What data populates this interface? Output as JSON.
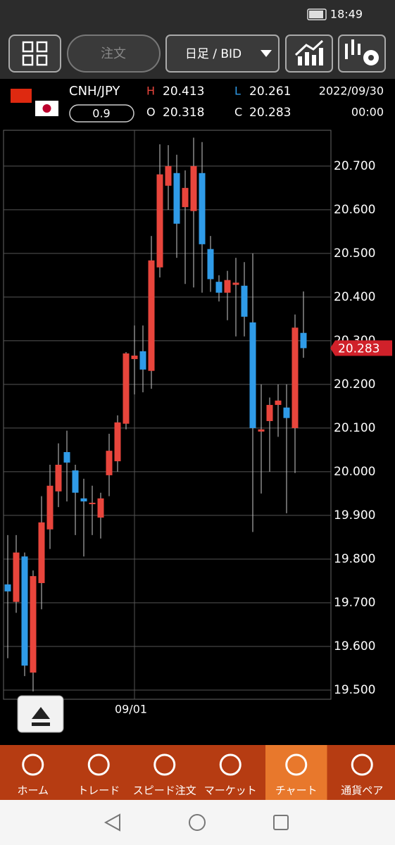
{
  "status_bar": {
    "time": "18:49"
  },
  "toolbar": {
    "order": "注文",
    "period": "日足 / BID"
  },
  "quote": {
    "pair": "CNH/JPY",
    "spread": 0.9,
    "high_label": "H",
    "high": 20.413,
    "low_label": "L",
    "low": 20.261,
    "open_label": "O",
    "open": 20.318,
    "close_label": "C",
    "close": 20.283,
    "date": "2022/09/30",
    "time": "00:00"
  },
  "chart_data": {
    "type": "candlestick",
    "categories": [
      null,
      null,
      null,
      null,
      null,
      null,
      null,
      null,
      null,
      null,
      null,
      null,
      null,
      null,
      null,
      "09/01",
      null,
      null,
      null,
      null,
      null,
      null,
      null,
      null,
      null,
      null,
      null,
      null,
      null,
      null,
      null,
      null,
      null,
      null,
      null,
      null
    ],
    "open": [
      19.742,
      19.702,
      19.806,
      19.54,
      19.745,
      19.868,
      19.955,
      20.045,
      20.003,
      19.939,
      19.926,
      19.895,
      19.992,
      20.024,
      20.11,
      20.258,
      20.276,
      20.231,
      20.468,
      20.655,
      20.684,
      20.606,
      20.597,
      20.684,
      20.51,
      20.435,
      20.41,
      20.428,
      20.426,
      20.342,
      20.092,
      20.116,
      20.153,
      20.147,
      20.1,
      20.318
    ],
    "high": [
      19.855,
      19.855,
      19.815,
      19.774,
      19.944,
      20.016,
      20.065,
      20.094,
      20.016,
      19.984,
      19.968,
      19.952,
      20.087,
      20.129,
      20.274,
      20.335,
      20.335,
      20.54,
      20.75,
      20.748,
      20.726,
      20.69,
      20.765,
      20.755,
      20.54,
      20.45,
      20.46,
      20.49,
      20.48,
      20.5,
      20.2,
      20.17,
      20.2,
      20.2,
      20.36,
      20.413
    ],
    "low": [
      19.573,
      19.677,
      19.532,
      19.497,
      19.685,
      19.823,
      19.919,
      19.932,
      19.855,
      19.806,
      19.855,
      19.847,
      19.944,
      20.0,
      20.097,
      20.177,
      20.182,
      20.19,
      20.445,
      20.6,
      20.49,
      20.43,
      20.422,
      20.41,
      20.412,
      20.39,
      20.347,
      20.31,
      20.31,
      19.862,
      19.95,
      20.0,
      20.08,
      19.905,
      19.997,
      20.261
    ],
    "close": [
      19.726,
      19.815,
      19.556,
      19.761,
      19.884,
      19.968,
      20.016,
      20.021,
      19.952,
      19.932,
      19.929,
      19.939,
      20.048,
      20.113,
      20.271,
      20.266,
      20.234,
      20.484,
      20.681,
      20.7,
      20.568,
      20.65,
      20.7,
      20.521,
      20.441,
      20.41,
      20.439,
      20.433,
      20.355,
      20.1,
      20.097,
      20.153,
      20.163,
      20.123,
      20.33,
      20.283
    ],
    "up_color": "#e8453c",
    "down_color": "#2f9be8",
    "last_price": 20.283,
    "ylim": [
      19.479,
      20.782
    ],
    "yticks": [
      {
        "value": 19.5,
        "label": "19.500"
      },
      {
        "value": 19.6,
        "label": "19.600"
      },
      {
        "value": 19.7,
        "label": "19.700"
      },
      {
        "value": 19.8,
        "label": "19.800"
      },
      {
        "value": 19.9,
        "label": "19.900"
      },
      {
        "value": 20.0,
        "label": "20.000"
      },
      {
        "value": 20.1,
        "label": "20.100"
      },
      {
        "value": 20.2,
        "label": "20.200"
      },
      {
        "value": 20.3,
        "label": "20.300"
      },
      {
        "value": 20.4,
        "label": "20.400"
      },
      {
        "value": 20.5,
        "label": "20.500"
      },
      {
        "value": 20.6,
        "label": "20.600"
      },
      {
        "value": 20.7,
        "label": "20.700"
      }
    ],
    "grid": true
  },
  "nav": {
    "items": [
      "ホーム",
      "トレード",
      "スピード注文",
      "マーケット",
      "チャート",
      "通貨ペア"
    ],
    "active": 4
  }
}
